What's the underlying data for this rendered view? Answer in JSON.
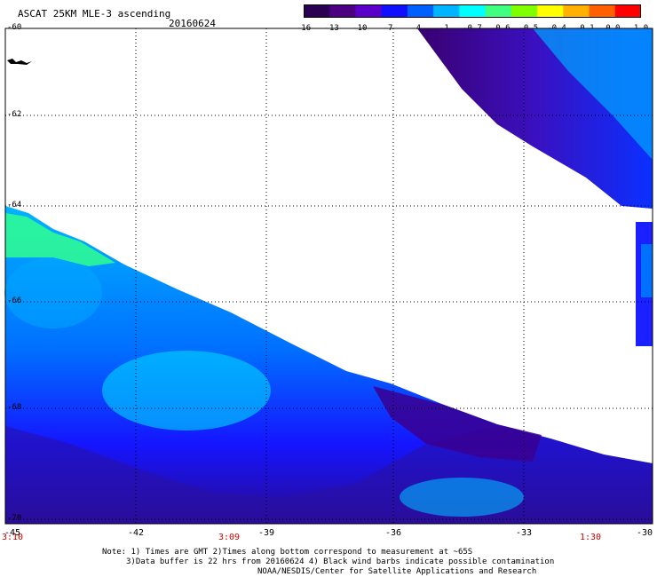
{
  "header": {
    "title": "ASCAT 25KM MLE-3 ascending",
    "date": "20160624"
  },
  "colorbar": {
    "labels": [
      "-16",
      "-13",
      "-10",
      "-7",
      "-4",
      "-1",
      "-0.7",
      "-0.6",
      "-0.5",
      "-0.4",
      "-0.1",
      "0.0",
      "1.0"
    ],
    "colors": [
      "#2a0050",
      "#4b0082",
      "#5a00c8",
      "#1010ff",
      "#0060ff",
      "#00b4ff",
      "#00ffff",
      "#40ff80",
      "#80ff00",
      "#ffff00",
      "#ffb000",
      "#ff6000",
      "#ff0000"
    ]
  },
  "map": {
    "lat_labels": [
      "-60",
      "-62",
      "-64",
      "-66",
      "-68",
      "-70"
    ],
    "lon_labels": [
      "-45",
      "-42",
      "-39",
      "-36",
      "-33",
      "-30"
    ],
    "time_labels": [
      "3:10",
      "3:09",
      "1:30"
    ],
    "land_color": "#000000",
    "grid": "dotted"
  },
  "notes": {
    "line1": "Note: 1) Times are GMT 2)Times along bottom correspond to measurement at ~65S",
    "line2": "3)Data buffer is 22 hrs from 20160624 4) Black wind barbs indicate possible contamination",
    "line3": "NOAA/NESDIS/Center for Satellite Applications and Research"
  }
}
